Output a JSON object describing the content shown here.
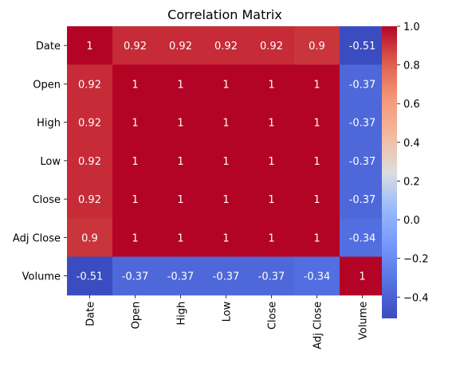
{
  "chart_data": {
    "type": "heatmap",
    "title": "Correlation Matrix",
    "row_labels": [
      "Date",
      "Open",
      "High",
      "Low",
      "Close",
      "Adj Close",
      "Volume"
    ],
    "col_labels": [
      "Date",
      "Open",
      "High",
      "Low",
      "Close",
      "Adj Close",
      "Volume"
    ],
    "values": [
      [
        1,
        0.92,
        0.92,
        0.92,
        0.92,
        0.9,
        -0.51
      ],
      [
        0.92,
        1,
        1,
        1,
        1,
        1,
        -0.37
      ],
      [
        0.92,
        1,
        1,
        1,
        1,
        1,
        -0.37
      ],
      [
        0.92,
        1,
        1,
        1,
        1,
        1,
        -0.37
      ],
      [
        0.92,
        1,
        1,
        1,
        1,
        1,
        -0.37
      ],
      [
        0.9,
        1,
        1,
        1,
        1,
        1,
        -0.34
      ],
      [
        -0.51,
        -0.37,
        -0.37,
        -0.37,
        -0.37,
        -0.34,
        1
      ]
    ],
    "colormap": "coolwarm",
    "vmin": -0.51,
    "vmax": 1,
    "colorbar_ticks": [
      "1.0",
      "0.8",
      "0.6",
      "0.4",
      "0.2",
      "0.0",
      "−0.2",
      "−0.4"
    ],
    "colorbar_tick_values": [
      1.0,
      0.8,
      0.6,
      0.4,
      0.2,
      0.0,
      -0.2,
      -0.4
    ],
    "annotated": true,
    "x_tick_rotation": "vertical"
  }
}
